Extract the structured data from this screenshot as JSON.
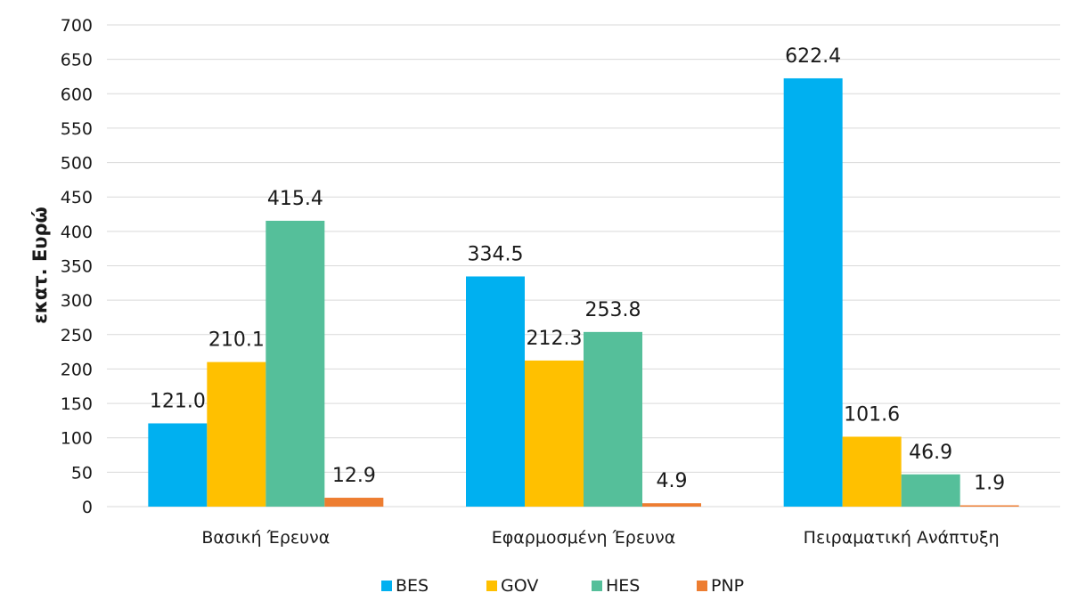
{
  "chart_data": {
    "type": "bar",
    "categories": [
      "Βασική Έρευνα",
      "Εφαρμοσμένη Έρευνα",
      "Πειραματική Ανάπτυξη"
    ],
    "series": [
      {
        "name": "BES",
        "color": "#00B0F0",
        "values": [
          121.0,
          334.5,
          622.4
        ],
        "labels": [
          "121.0",
          "334.5",
          "622.4"
        ]
      },
      {
        "name": "GOV",
        "color": "#FFC000",
        "values": [
          210.1,
          212.3,
          101.6
        ],
        "labels": [
          "210.1",
          "212.3",
          "101.6"
        ]
      },
      {
        "name": "HES",
        "color": "#55BF9A",
        "values": [
          415.4,
          253.8,
          46.9
        ],
        "labels": [
          "415.4",
          "253.8",
          "46.9"
        ]
      },
      {
        "name": "PNP",
        "color": "#ED7D31",
        "values": [
          12.9,
          4.9,
          1.9
        ],
        "labels": [
          "12.9",
          "4.9",
          "1.9"
        ]
      }
    ],
    "ylabel": "εκατ. Ευρώ",
    "xlabel": "",
    "ylim": [
      0,
      700
    ],
    "yticks": [
      0,
      50,
      100,
      150,
      200,
      250,
      300,
      350,
      400,
      450,
      500,
      550,
      600,
      650,
      700
    ],
    "grid": true,
    "legend_position": "bottom"
  }
}
